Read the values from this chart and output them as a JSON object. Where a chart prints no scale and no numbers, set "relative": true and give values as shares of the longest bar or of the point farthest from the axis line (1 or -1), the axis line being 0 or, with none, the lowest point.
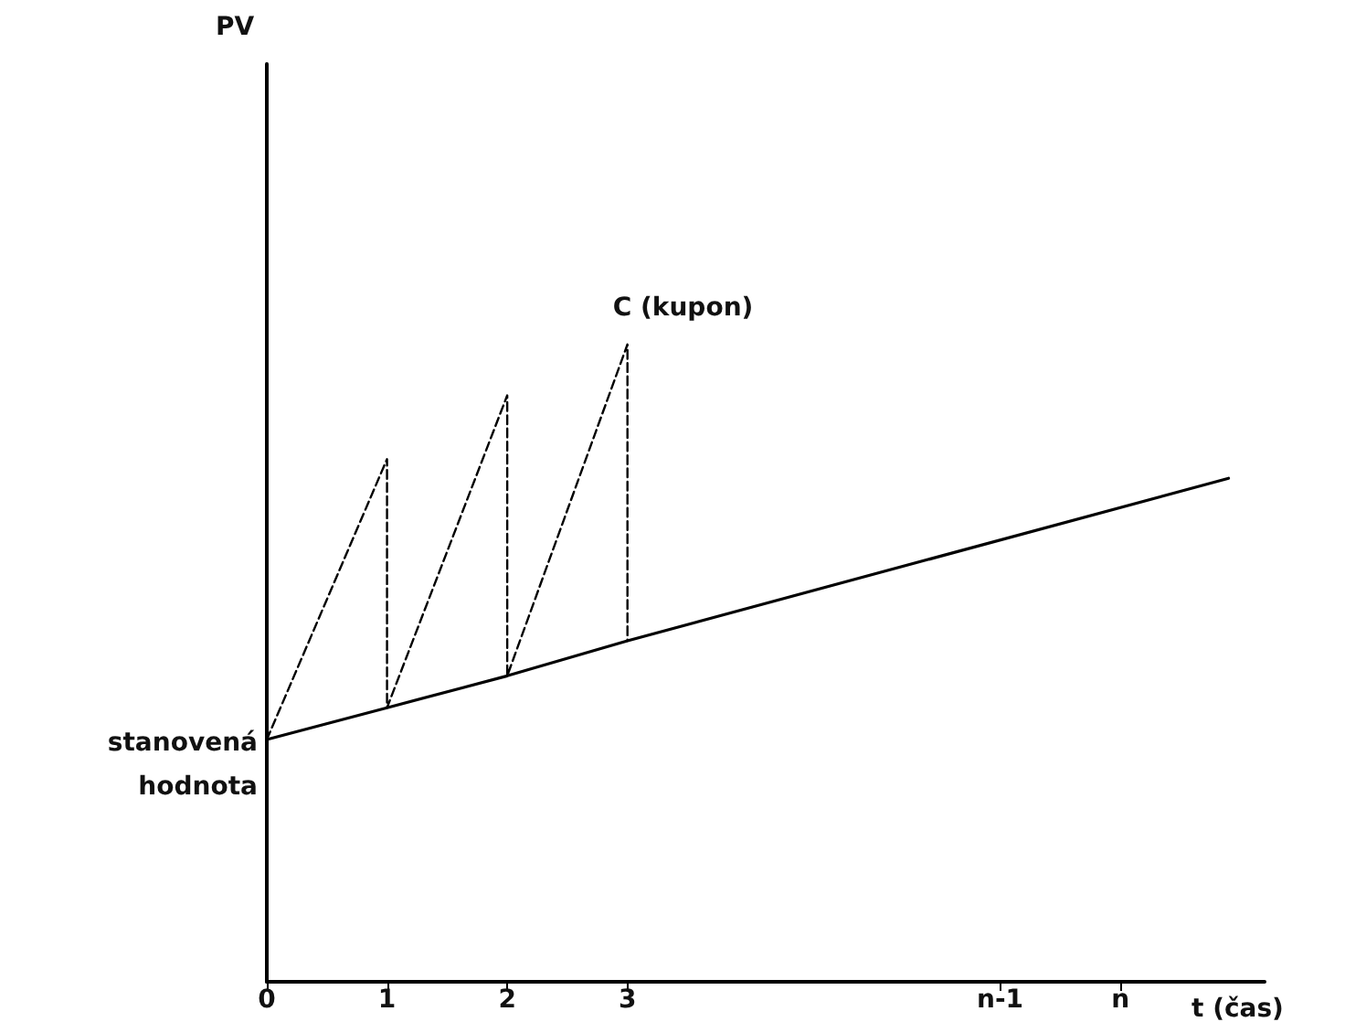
{
  "chart_data": {
    "type": "line",
    "relative": true,
    "xlabel": "t (čas)",
    "xlim": [
      0,
      8.3
    ],
    "xticks": [
      0,
      1,
      2,
      3,
      {
        "value": 6.1,
        "label": "n-1"
      },
      {
        "value": 7.1,
        "label": "n"
      }
    ],
    "series": [
      {
        "color": "#000000",
        "line_style": "solid",
        "x": [
          0,
          1,
          2,
          3,
          8
        ],
        "values": [
          0.38,
          0.43,
          0.48,
          0.535,
          0.79
        ]
      },
      {
        "color": "#000000",
        "line_style": "dashed",
        "x": [
          0,
          1,
          1,
          2,
          2,
          3,
          3
        ],
        "values": [
          0.38,
          0.82,
          0.43,
          0.92,
          0.48,
          1,
          0.535
        ]
      }
    ],
    "annotations": [
      "PV",
      {
        "text": "C (kupon)",
        "x": 3,
        "y": 1
      },
      {
        "text": "stanovená hodnota",
        "x": 0,
        "y": 0.38
      }
    ],
    "grid": false,
    "marker": "none"
  }
}
